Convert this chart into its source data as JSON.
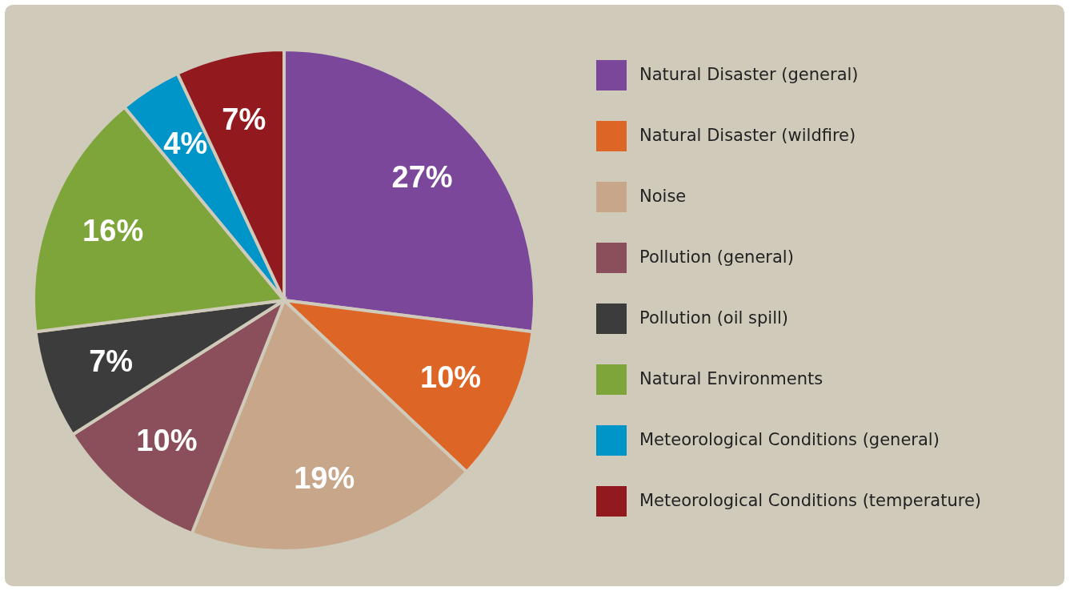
{
  "chart_data": {
    "type": "pie",
    "categories": [
      "Natural Disaster (general)",
      "Natural Disaster (wildfire)",
      "Noise",
      "Pollution (general)",
      "Pollution (oil spill)",
      "Natural Environments",
      "Meteorological Conditions (general)",
      "Meteorological Conditions (temperature)"
    ],
    "values": [
      27,
      10,
      19,
      10,
      7,
      16,
      4,
      7
    ],
    "value_labels": [
      "27%",
      "10%",
      "19%",
      "10%",
      "7%",
      "16%",
      "4%",
      "7%"
    ],
    "colors": [
      "#7b479b",
      "#dd6525",
      "#c8a68a",
      "#8a4f5a",
      "#3c3c3c",
      "#7ea53a",
      "#0095c8",
      "#92191e"
    ],
    "legend": "right"
  }
}
